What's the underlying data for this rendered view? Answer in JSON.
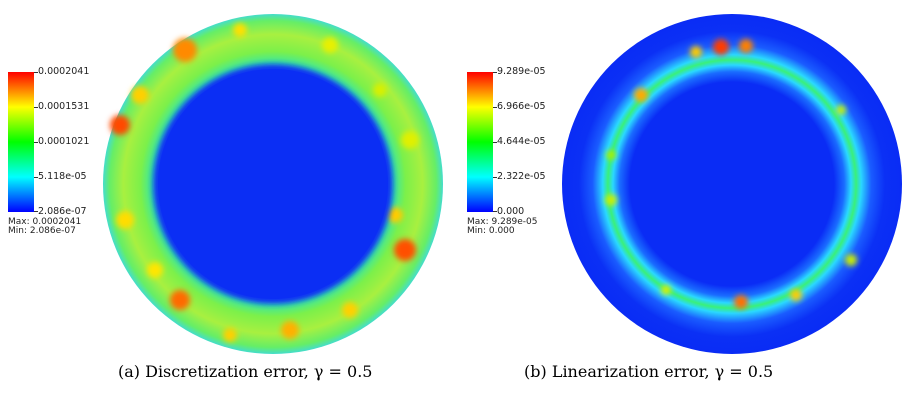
{
  "figures": [
    {
      "id": "a",
      "caption": "(a) Discretization error, γ = 0.5",
      "colorbar": {
        "ticks": [
          "0.0002041",
          "0.0001531",
          "0.0001021",
          "5.118e-05",
          "2.086e-07"
        ],
        "max_label": "Max:  0.0002041",
        "min_label": "Min:  2.086e-07"
      }
    },
    {
      "id": "b",
      "caption": "(b) Linearization error, γ = 0.5",
      "colorbar": {
        "ticks": [
          "9.289e-05",
          "6.966e-05",
          "4.644e-05",
          "2.322e-05",
          "0.000"
        ],
        "max_label": "Max:  9.289e-05",
        "min_label": "Min:  0.000"
      }
    }
  ],
  "colormap": [
    "#0000ff",
    "#00ffff",
    "#00ff00",
    "#ffff00",
    "#ff0000"
  ]
}
